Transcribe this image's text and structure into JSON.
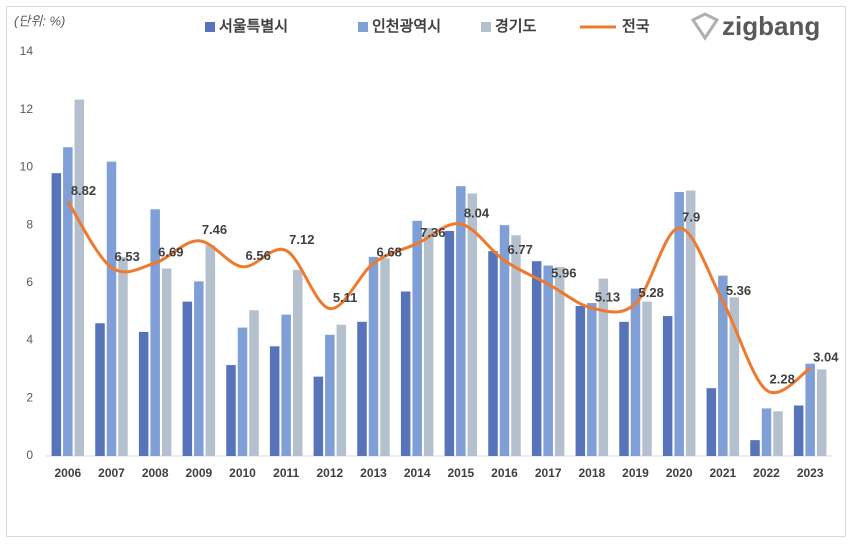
{
  "chart_data": {
    "type": "bar",
    "ylabel": "(단위: %)",
    "brand": "zigbang",
    "categories": [
      "2006",
      "2007",
      "2008",
      "2009",
      "2010",
      "2011",
      "2012",
      "2013",
      "2014",
      "2015",
      "2016",
      "2017",
      "2018",
      "2019",
      "2020",
      "2021",
      "2022",
      "2023"
    ],
    "series": [
      {
        "name": "서울특별시",
        "color": "#5773b9",
        "values": [
          9.8,
          4.6,
          4.3,
          5.35,
          3.15,
          3.8,
          2.75,
          4.65,
          5.7,
          7.8,
          7.1,
          6.75,
          5.2,
          4.65,
          4.85,
          2.35,
          0.55,
          1.75
        ]
      },
      {
        "name": "인천광역시",
        "color": "#7f9fd6",
        "values": [
          10.7,
          10.2,
          8.55,
          6.05,
          4.45,
          4.9,
          4.2,
          6.9,
          8.15,
          9.35,
          8.0,
          6.6,
          5.3,
          5.8,
          9.15,
          6.25,
          1.65,
          3.2
        ]
      },
      {
        "name": "경기도",
        "color": "#b5c0ce",
        "values": [
          12.35,
          6.9,
          6.5,
          7.3,
          5.05,
          6.45,
          4.55,
          6.85,
          7.9,
          9.1,
          7.65,
          6.55,
          6.15,
          5.35,
          9.2,
          5.5,
          1.55,
          3.0
        ]
      },
      {
        "name": "전국",
        "type": "line",
        "color": "#ed7a2e",
        "values": [
          8.82,
          6.53,
          6.69,
          7.46,
          6.56,
          7.12,
          5.11,
          6.68,
          7.36,
          8.04,
          6.77,
          5.96,
          5.13,
          5.28,
          7.9,
          5.36,
          2.28,
          3.04
        ],
        "data_labels": true
      }
    ],
    "ylim": [
      0,
      14
    ],
    "yticks": [
      0,
      2,
      4,
      6,
      8,
      10,
      12,
      14
    ],
    "grid": false
  }
}
